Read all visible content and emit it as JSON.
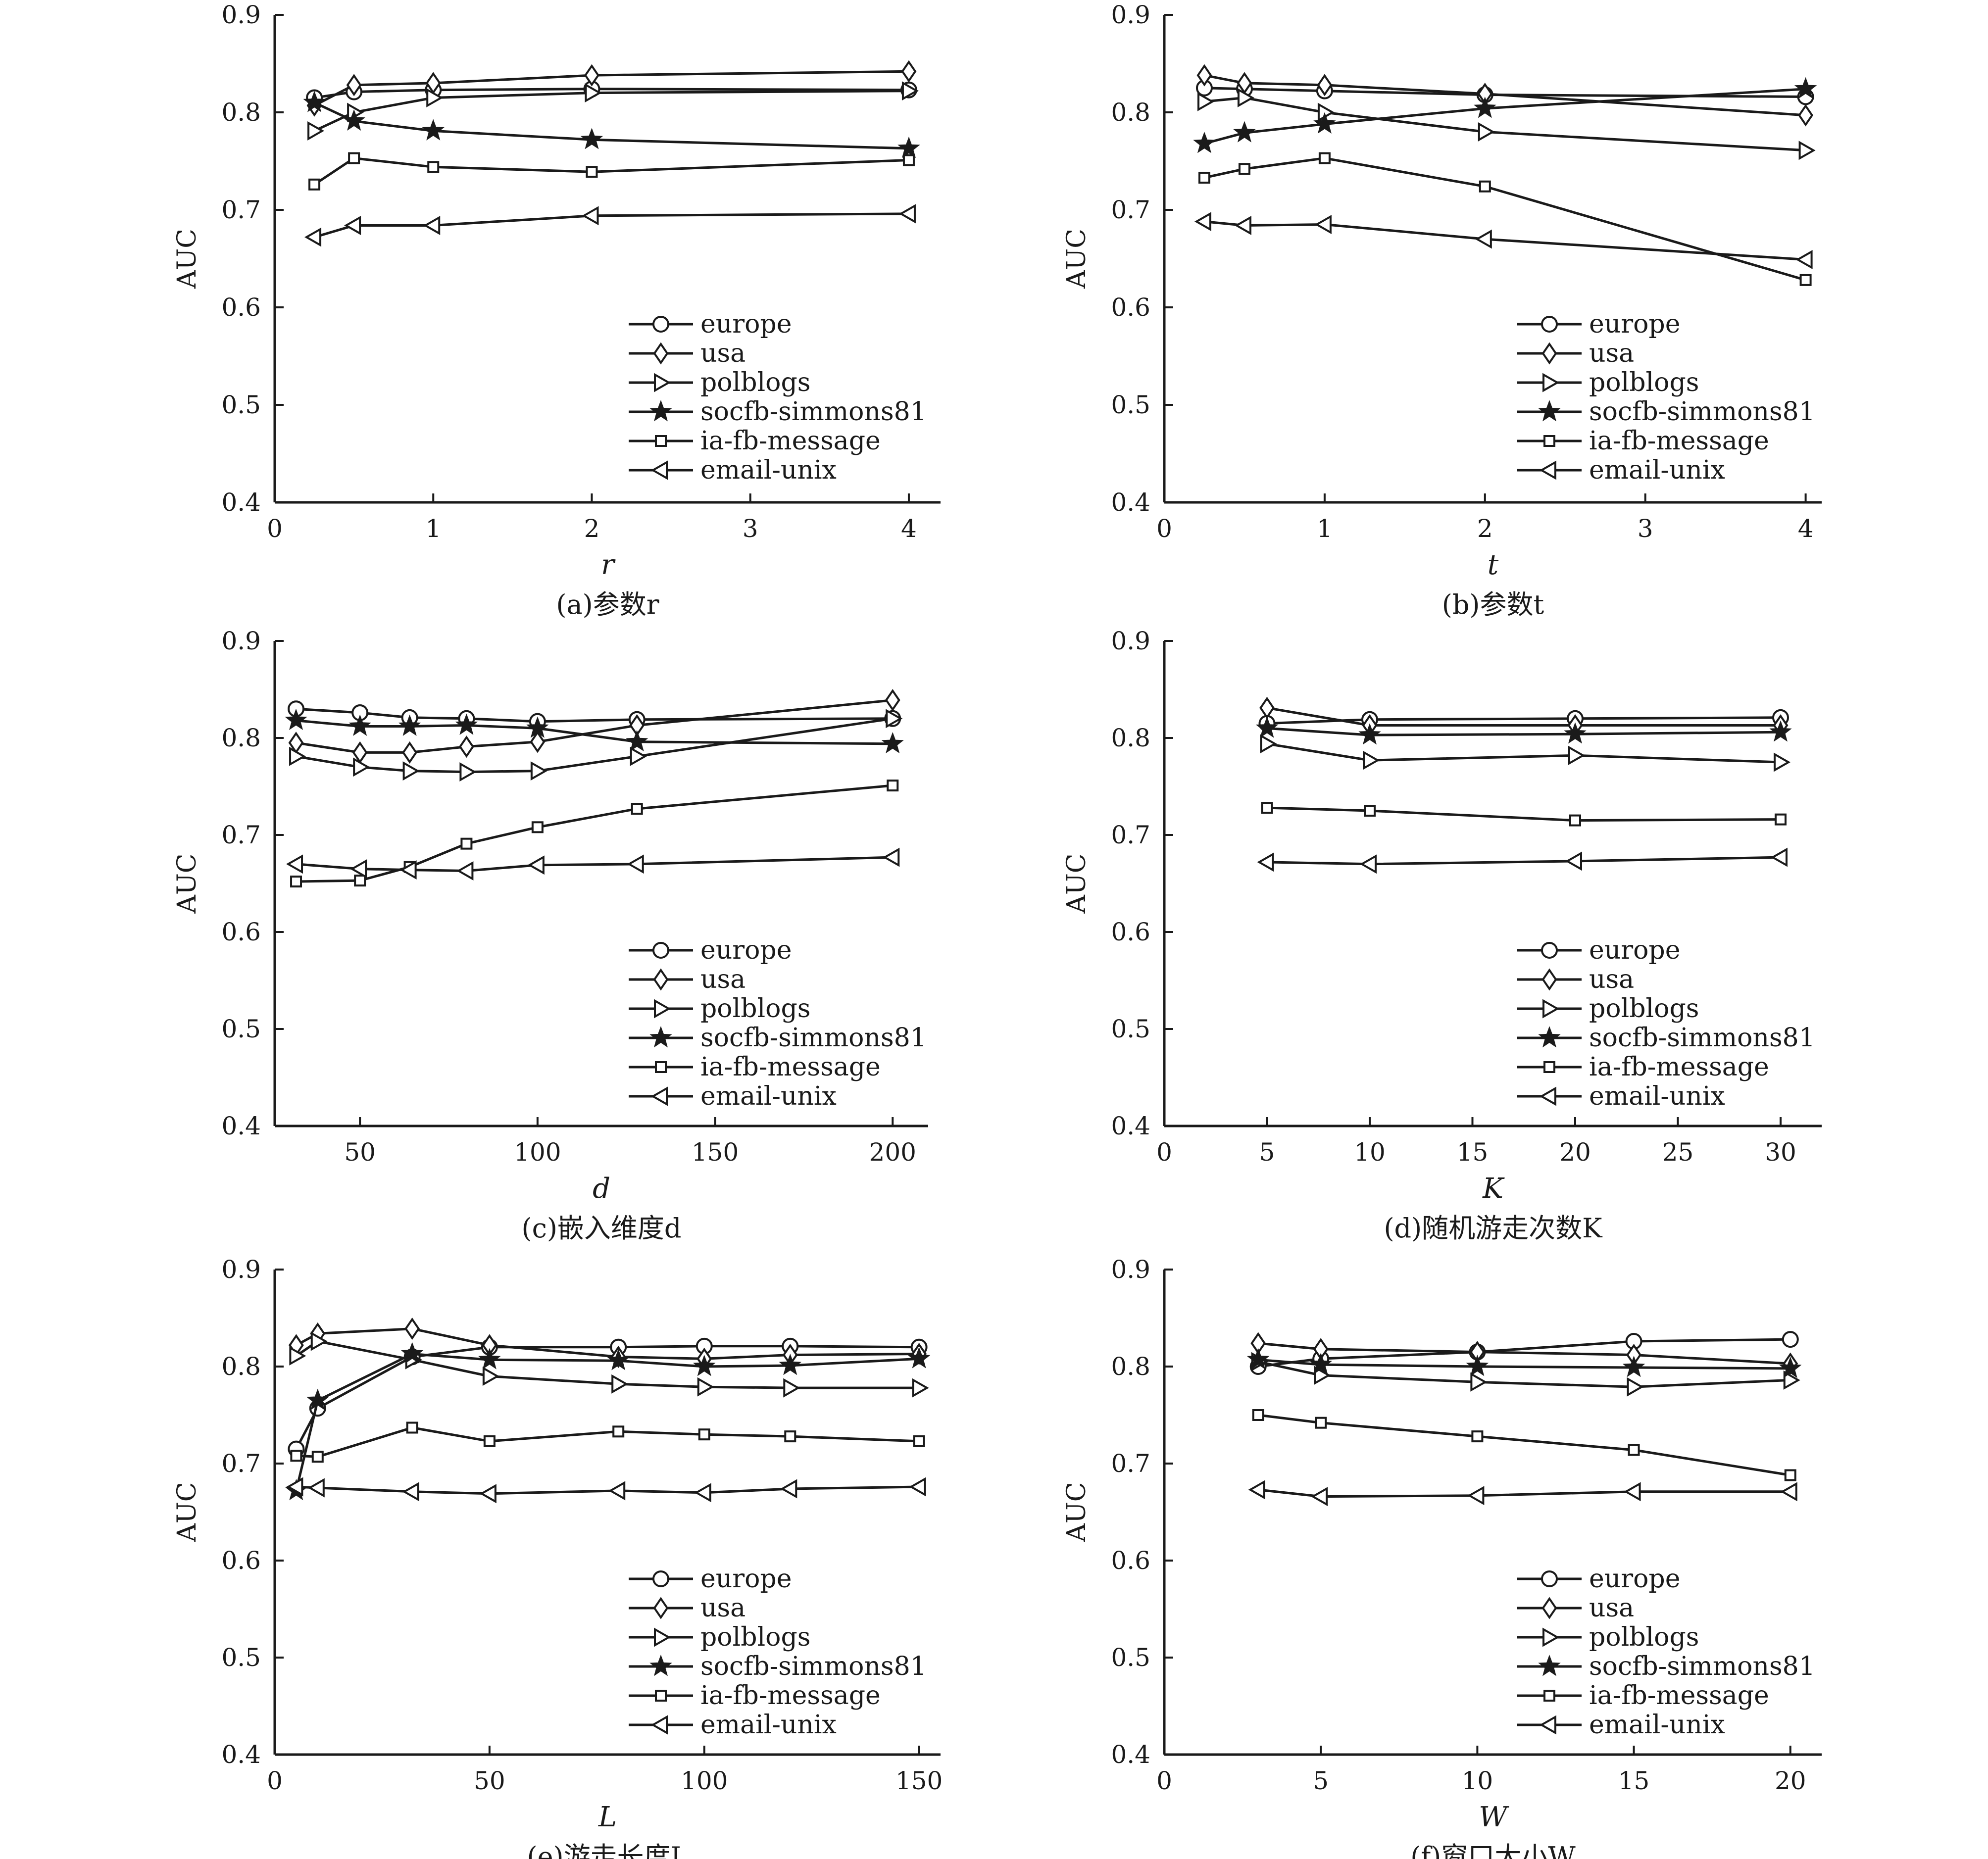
{
  "figure": {
    "legend_entries": [
      "europe",
      "usa",
      "polblogs",
      "socfb-simmons81",
      "ia-fb-message",
      "email-unix"
    ],
    "marker_icons": [
      "circle-marker-icon",
      "diamond-marker-icon",
      "triangle-right-marker-icon",
      "star-marker-icon",
      "square-marker-icon",
      "triangle-left-marker-icon"
    ]
  },
  "chart_data": [
    {
      "type": "line",
      "caption": "(a)参数r",
      "xlabel": "r",
      "ylabel": "AUC",
      "xlim": [
        0,
        4.2
      ],
      "ylim": [
        0.4,
        0.9
      ],
      "xticks": [
        0,
        1,
        2,
        3,
        4
      ],
      "yticks": [
        0.4,
        0.5,
        0.6,
        0.7,
        0.8,
        0.9
      ],
      "legend_position": "bottom-right",
      "x": [
        0.25,
        0.5,
        1,
        2,
        4
      ],
      "series": [
        {
          "name": "europe",
          "values": [
            0.815,
            0.821,
            0.823,
            0.824,
            0.823
          ]
        },
        {
          "name": "usa",
          "values": [
            0.807,
            0.828,
            0.83,
            0.838,
            0.842
          ]
        },
        {
          "name": "polblogs",
          "values": [
            0.781,
            0.8,
            0.815,
            0.82,
            0.822
          ]
        },
        {
          "name": "socfb-simmons81",
          "values": [
            0.81,
            0.791,
            0.781,
            0.772,
            0.763
          ]
        },
        {
          "name": "ia-fb-message",
          "values": [
            0.726,
            0.753,
            0.744,
            0.739,
            0.751
          ]
        },
        {
          "name": "email-unix",
          "values": [
            0.672,
            0.684,
            0.684,
            0.694,
            0.696
          ]
        }
      ]
    },
    {
      "type": "line",
      "caption": "(b)参数t",
      "xlabel": "t",
      "ylabel": "AUC",
      "xlim": [
        0,
        4.1
      ],
      "ylim": [
        0.4,
        0.9
      ],
      "xticks": [
        0,
        1,
        2,
        3,
        4
      ],
      "yticks": [
        0.4,
        0.5,
        0.6,
        0.7,
        0.8,
        0.9
      ],
      "legend_position": "bottom-right",
      "x": [
        0.25,
        0.5,
        1,
        2,
        4
      ],
      "series": [
        {
          "name": "europe",
          "values": [
            0.825,
            0.824,
            0.822,
            0.818,
            0.816
          ]
        },
        {
          "name": "usa",
          "values": [
            0.838,
            0.83,
            0.828,
            0.819,
            0.797
          ]
        },
        {
          "name": "polblogs",
          "values": [
            0.811,
            0.815,
            0.8,
            0.78,
            0.761
          ]
        },
        {
          "name": "socfb-simmons81",
          "values": [
            0.768,
            0.779,
            0.788,
            0.804,
            0.824
          ]
        },
        {
          "name": "ia-fb-message",
          "values": [
            0.733,
            0.742,
            0.753,
            0.724,
            0.628
          ]
        },
        {
          "name": "email-unix",
          "values": [
            0.688,
            0.684,
            0.685,
            0.67,
            0.649
          ]
        }
      ]
    },
    {
      "type": "line",
      "caption": "(c)嵌入维度d",
      "xlabel": "d",
      "ylabel": "AUC",
      "xlim": [
        26,
        210
      ],
      "ylim": [
        0.4,
        0.9
      ],
      "xticks": [
        50,
        100,
        150,
        200
      ],
      "yticks": [
        0.4,
        0.5,
        0.6,
        0.7,
        0.8,
        0.9
      ],
      "legend_position": "bottom-right",
      "x": [
        32,
        50,
        64,
        80,
        100,
        128,
        200
      ],
      "series": [
        {
          "name": "europe",
          "values": [
            0.83,
            0.826,
            0.821,
            0.82,
            0.817,
            0.819,
            0.82
          ]
        },
        {
          "name": "usa",
          "values": [
            0.795,
            0.785,
            0.785,
            0.791,
            0.796,
            0.813,
            0.839
          ]
        },
        {
          "name": "polblogs",
          "values": [
            0.781,
            0.77,
            0.766,
            0.765,
            0.766,
            0.781,
            0.82
          ]
        },
        {
          "name": "socfb-simmons81",
          "values": [
            0.818,
            0.812,
            0.812,
            0.813,
            0.81,
            0.796,
            0.794
          ]
        },
        {
          "name": "ia-fb-message",
          "values": [
            0.652,
            0.653,
            0.667,
            0.691,
            0.708,
            0.727,
            0.751
          ]
        },
        {
          "name": "email-unix",
          "values": [
            0.67,
            0.665,
            0.664,
            0.663,
            0.669,
            0.67,
            0.677
          ]
        }
      ]
    },
    {
      "type": "line",
      "caption": "(d)随机游走次数K",
      "xlabel": "K",
      "ylabel": "AUC",
      "xlim": [
        0,
        32
      ],
      "ylim": [
        0.4,
        0.9
      ],
      "xticks": [
        0,
        5,
        10,
        15,
        20,
        25,
        30
      ],
      "yticks": [
        0.4,
        0.5,
        0.6,
        0.7,
        0.8,
        0.9
      ],
      "legend_position": "bottom-right",
      "x": [
        5,
        10,
        20,
        30
      ],
      "series": [
        {
          "name": "europe",
          "values": [
            0.815,
            0.819,
            0.82,
            0.821
          ]
        },
        {
          "name": "usa",
          "values": [
            0.831,
            0.813,
            0.813,
            0.813
          ]
        },
        {
          "name": "polblogs",
          "values": [
            0.794,
            0.777,
            0.782,
            0.775
          ]
        },
        {
          "name": "socfb-simmons81",
          "values": [
            0.81,
            0.803,
            0.804,
            0.806
          ]
        },
        {
          "name": "ia-fb-message",
          "values": [
            0.728,
            0.725,
            0.715,
            0.716
          ]
        },
        {
          "name": "email-unix",
          "values": [
            0.672,
            0.67,
            0.673,
            0.677
          ]
        }
      ]
    },
    {
      "type": "line",
      "caption": "(e)游走长度L",
      "xlabel": "L",
      "ylabel": "AUC",
      "xlim": [
        0,
        155
      ],
      "ylim": [
        0.4,
        0.9
      ],
      "xticks": [
        0,
        50,
        100,
        150
      ],
      "yticks": [
        0.4,
        0.5,
        0.6,
        0.7,
        0.8,
        0.9
      ],
      "legend_position": "bottom-right",
      "x": [
        5,
        10,
        32,
        50,
        80,
        100,
        120,
        150
      ],
      "series": [
        {
          "name": "europe",
          "values": [
            0.715,
            0.757,
            0.81,
            0.82,
            0.82,
            0.821,
            0.821,
            0.82
          ]
        },
        {
          "name": "usa",
          "values": [
            0.822,
            0.834,
            0.839,
            0.822,
            0.81,
            0.808,
            0.812,
            0.813
          ]
        },
        {
          "name": "polblogs",
          "values": [
            0.811,
            0.826,
            0.807,
            0.79,
            0.782,
            0.779,
            0.778,
            0.778
          ]
        },
        {
          "name": "socfb-simmons81",
          "values": [
            0.672,
            0.765,
            0.813,
            0.807,
            0.806,
            0.8,
            0.801,
            0.808
          ]
        },
        {
          "name": "ia-fb-message",
          "values": [
            0.708,
            0.707,
            0.737,
            0.723,
            0.733,
            0.73,
            0.728,
            0.723
          ]
        },
        {
          "name": "email-unix",
          "values": [
            0.676,
            0.675,
            0.671,
            0.669,
            0.672,
            0.67,
            0.674,
            0.676
          ]
        }
      ]
    },
    {
      "type": "line",
      "caption": "(f)窗口大小W",
      "xlabel": "W",
      "ylabel": "AUC",
      "xlim": [
        0,
        21
      ],
      "ylim": [
        0.4,
        0.9
      ],
      "xticks": [
        0,
        5,
        10,
        15,
        20
      ],
      "yticks": [
        0.4,
        0.5,
        0.6,
        0.7,
        0.8,
        0.9
      ],
      "legend_position": "bottom-right",
      "x": [
        3,
        5,
        10,
        15,
        20
      ],
      "series": [
        {
          "name": "europe",
          "values": [
            0.8,
            0.808,
            0.815,
            0.826,
            0.828
          ]
        },
        {
          "name": "usa",
          "values": [
            0.824,
            0.818,
            0.815,
            0.812,
            0.803
          ]
        },
        {
          "name": "polblogs",
          "values": [
            0.805,
            0.791,
            0.784,
            0.779,
            0.786
          ]
        },
        {
          "name": "socfb-simmons81",
          "values": [
            0.807,
            0.802,
            0.8,
            0.799,
            0.798
          ]
        },
        {
          "name": "ia-fb-message",
          "values": [
            0.75,
            0.742,
            0.728,
            0.714,
            0.688
          ]
        },
        {
          "name": "email-unix",
          "values": [
            0.673,
            0.666,
            0.667,
            0.671,
            0.671
          ]
        }
      ]
    }
  ]
}
